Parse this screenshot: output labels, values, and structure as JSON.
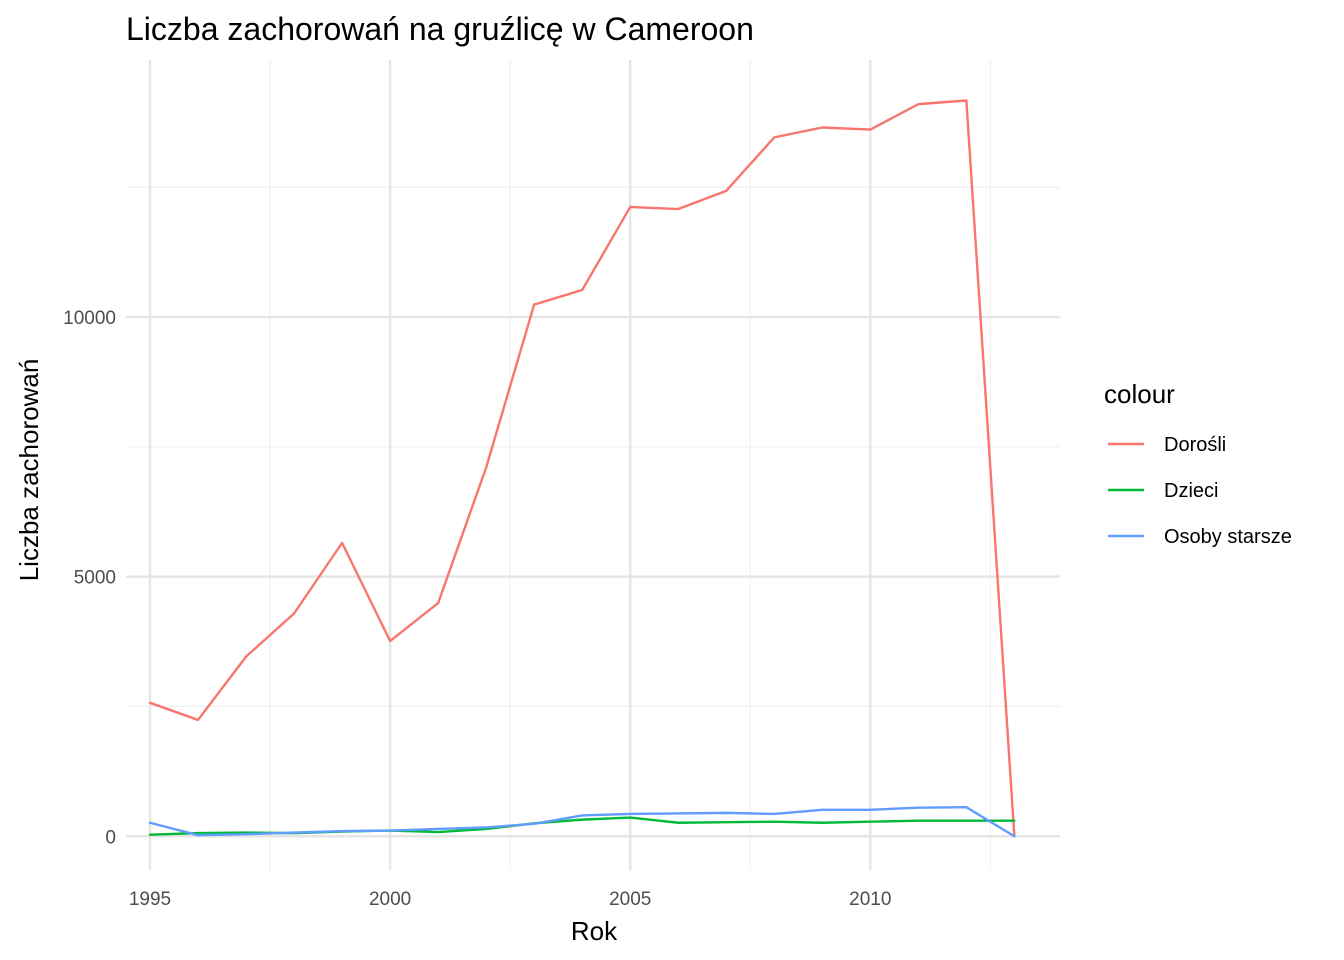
{
  "chart_data": {
    "type": "line",
    "title": "Liczba zachorowań na gruźlicę w Cameroon",
    "xlabel": "Rok",
    "ylabel": "Liczba zachorowań",
    "x": [
      1995,
      1996,
      1997,
      1998,
      1999,
      2000,
      2001,
      2002,
      2003,
      2004,
      2005,
      2006,
      2007,
      2008,
      2009,
      2010,
      2011,
      2012,
      2013
    ],
    "series": [
      {
        "name": "Dorośli",
        "color": "#f8766d",
        "values": [
          2570,
          2240,
          3460,
          4290,
          5650,
          3760,
          4490,
          7100,
          10240,
          10520,
          12120,
          12080,
          12430,
          13460,
          13650,
          13610,
          14100,
          14170,
          0
        ]
      },
      {
        "name": "Dzieci",
        "color": "#00ba38",
        "values": [
          30,
          60,
          70,
          60,
          90,
          110,
          80,
          140,
          250,
          320,
          360,
          260,
          270,
          280,
          260,
          280,
          300,
          300,
          300
        ]
      },
      {
        "name": "Osoby starsze",
        "color": "#619cff",
        "values": [
          260,
          20,
          40,
          70,
          100,
          110,
          140,
          170,
          240,
          400,
          430,
          440,
          450,
          430,
          510,
          510,
          550,
          560,
          0
        ]
      }
    ],
    "xticks": [
      1995,
      2000,
      2005,
      2010
    ],
    "xtick_labels": [
      "1995",
      "2000",
      "2005",
      "2010"
    ],
    "yticks": [
      0,
      5000,
      10000
    ],
    "ytick_labels": [
      "0",
      "5000",
      "10000"
    ],
    "xlim": [
      1994.5,
      2013.95
    ],
    "ylim": [
      -650,
      14950
    ],
    "grid": true,
    "legend": {
      "title": "colour",
      "placement": "right",
      "entries": [
        "Dorośli",
        "Dzieci",
        "Osoby starsze"
      ]
    }
  }
}
